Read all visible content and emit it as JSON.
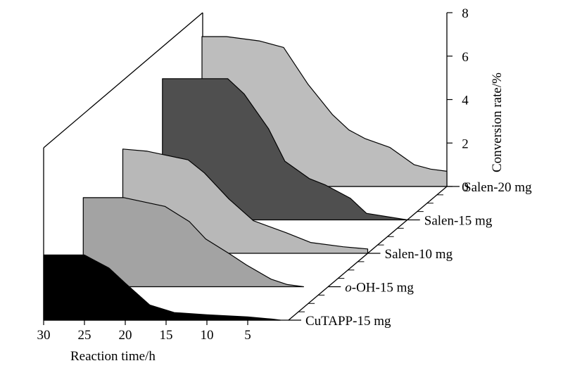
{
  "chart_data": {
    "type": "area",
    "style": "3d-waterfall",
    "xlabel": "Reaction time/h",
    "ylabel": "Conversion rate/%",
    "xlim": [
      30,
      0
    ],
    "ylim": [
      0,
      8
    ],
    "x_ticks": [
      "30",
      "25",
      "20",
      "15",
      "10",
      "5"
    ],
    "y_ticks": [
      "0",
      "2",
      "4",
      "6",
      "8"
    ],
    "grid": false,
    "legend": "none",
    "series": [
      {
        "name": "CuTAPP-15 mg",
        "color": "#000000",
        "x": [
          30,
          25,
          22,
          20,
          17,
          14,
          10,
          5,
          2,
          1
        ],
        "y": [
          3.0,
          3.0,
          2.4,
          1.7,
          0.7,
          0.35,
          0.25,
          0.15,
          0.05,
          0.0
        ]
      },
      {
        "name": "o-OH-15 mg",
        "color": "#a3a3a3",
        "x": [
          30,
          25,
          20,
          17,
          15,
          12,
          10,
          7,
          5,
          3
        ],
        "y": [
          4.1,
          4.1,
          3.7,
          3.0,
          2.2,
          1.5,
          1.0,
          0.35,
          0.1,
          0.0
        ]
      },
      {
        "name": "Salen-10 mg",
        "color": "#b8b8b8",
        "x": [
          30,
          27,
          22,
          20,
          17,
          14,
          10,
          7,
          3,
          0
        ],
        "y": [
          4.8,
          4.7,
          4.3,
          3.7,
          2.5,
          1.5,
          0.95,
          0.5,
          0.3,
          0.2
        ]
      },
      {
        "name": "Salen-15 mg",
        "color": "#4f4f4f",
        "x": [
          30,
          22,
          20,
          17,
          15,
          12,
          10,
          7,
          5,
          0
        ],
        "y": [
          6.5,
          6.5,
          5.8,
          4.2,
          2.7,
          1.9,
          1.6,
          1.0,
          0.3,
          0.0
        ]
      },
      {
        "name": "Salen-20 mg",
        "color": "#bdbdbd",
        "x": [
          30,
          27,
          23,
          20,
          17,
          14,
          12,
          10,
          7,
          4,
          2,
          0
        ],
        "y": [
          6.9,
          6.9,
          6.7,
          6.4,
          4.7,
          3.3,
          2.6,
          2.2,
          1.8,
          1.0,
          0.8,
          0.7
        ]
      }
    ]
  }
}
